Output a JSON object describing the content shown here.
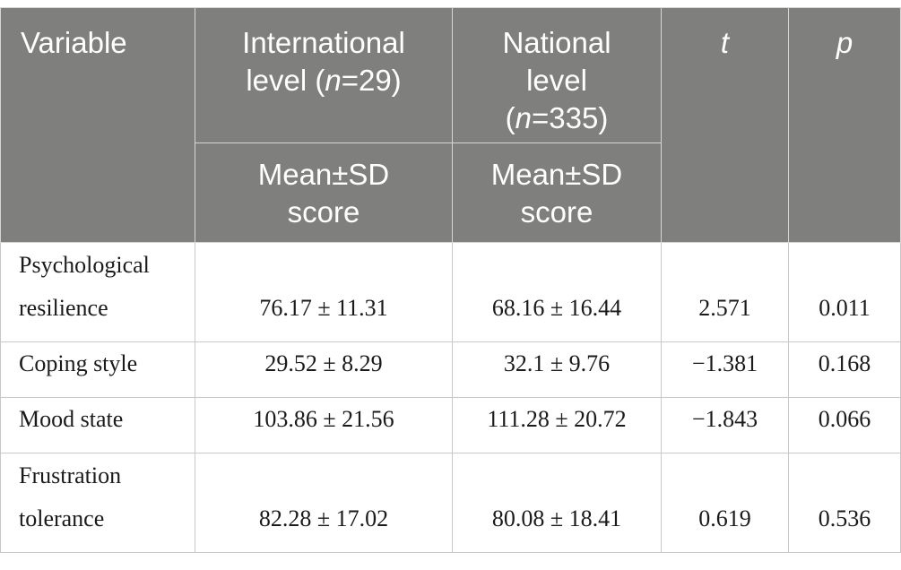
{
  "table": {
    "headers": {
      "variable": "Variable",
      "international_line1": "International",
      "international_line2_pre": "level (",
      "international_n": "n",
      "international_line2_post": "=29)",
      "national_line1": "National",
      "national_line2": "level",
      "national_line3_pre": "(",
      "national_n": "n",
      "national_line3_post": "=335)",
      "t": "t",
      "p": "p",
      "sub_international_line1": "Mean±SD",
      "sub_international_line2": "score",
      "sub_national_line1": "Mean±SD",
      "sub_national_line2": "score"
    },
    "rows": [
      {
        "variable_line1": "Psychological",
        "variable_line2": "resilience",
        "international": "76.17 ± 11.31",
        "national": "68.16 ± 16.44",
        "t": "2.571",
        "p": "0.011"
      },
      {
        "variable_line1": "Coping style",
        "variable_line2": "",
        "international": "29.52 ± 8.29",
        "national": "32.1 ± 9.76",
        "t": "−1.381",
        "p": "0.168"
      },
      {
        "variable_line1": "Mood state",
        "variable_line2": "",
        "international": "103.86 ± 21.56",
        "national": "111.28 ± 20.72",
        "t": "−1.843",
        "p": "0.066"
      },
      {
        "variable_line1": "Frustration",
        "variable_line2": "tolerance",
        "international": "82.28 ± 17.02",
        "national": "80.08 ± 18.41",
        "t": "0.619",
        "p": "0.536"
      }
    ]
  }
}
